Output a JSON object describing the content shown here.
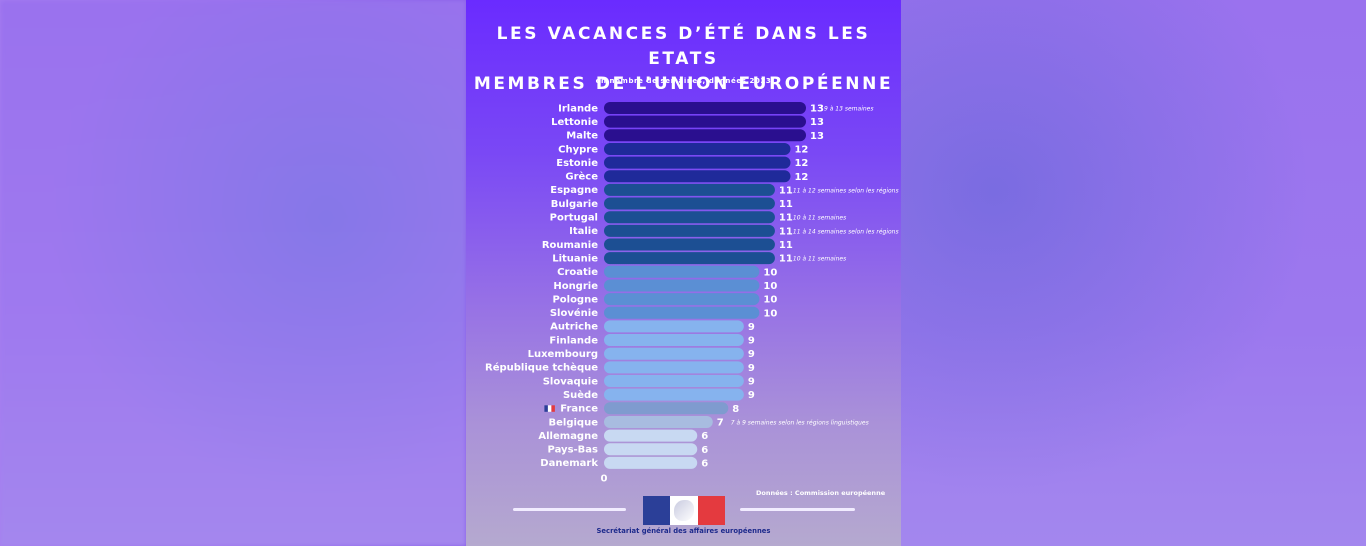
{
  "title_line1": "LES VACANCES D’ÉTÉ DANS LES ETATS",
  "title_line2": "MEMBRES DE L’UNION EUROPÉENNE",
  "subtitle": "en nombre de semaines, données 2023",
  "source": "Données : Commission européenne",
  "organization": "Secrétariat général des affaires européennes",
  "chart_data": {
    "type": "bar",
    "orientation": "horizontal",
    "title": "LES VACANCES D’ÉTÉ DANS LES ETATS MEMBRES DE L’UNION EUROPÉENNE",
    "subtitle": "en nombre de semaines, données 2023",
    "xlim": [
      0,
      13
    ],
    "axis_zero_label": "0",
    "categories": [
      "Irlande",
      "Lettonie",
      "Malte",
      "Chypre",
      "Estonie",
      "Grèce",
      "Espagne",
      "Bulgarie",
      "Portugal",
      "Italie",
      "Roumanie",
      "Lituanie",
      "Croatie",
      "Hongrie",
      "Pologne",
      "Slovénie",
      "Autriche",
      "Finlande",
      "Luxembourg",
      "République tchèque",
      "Slovaquie",
      "Suède",
      "France",
      "Belgique",
      "Allemagne",
      "Pays-Bas",
      "Danemark"
    ],
    "values": [
      13,
      13,
      13,
      12,
      12,
      12,
      11,
      11,
      11,
      11,
      11,
      11,
      10,
      10,
      10,
      10,
      9,
      9,
      9,
      9,
      9,
      9,
      8,
      7,
      6,
      6,
      6
    ],
    "notes": [
      "9 à 13 semaines",
      "",
      "",
      "",
      "",
      "",
      "11 à 12 semaines selon les régions",
      "",
      "10 à 11 semaines",
      "11 à 14 semaines selon les régions",
      "",
      "10 à 11 semaines",
      "",
      "",
      "",
      "",
      "",
      "",
      "",
      "",
      "",
      "",
      "",
      "7 à 9 semaines selon les régions linguistiques",
      "",
      "",
      ""
    ],
    "colors": {
      "13": "#2a0f8f",
      "12": "#1f2a9a",
      "11": "#1c4f93",
      "10": "#5b8fd4",
      "9": "#86b3ee",
      "8": "#7f9bcf",
      "7": "#a8bce0",
      "6": "#c8d9f2"
    },
    "highlight_flag": "France",
    "grid": false,
    "legend": "none"
  }
}
